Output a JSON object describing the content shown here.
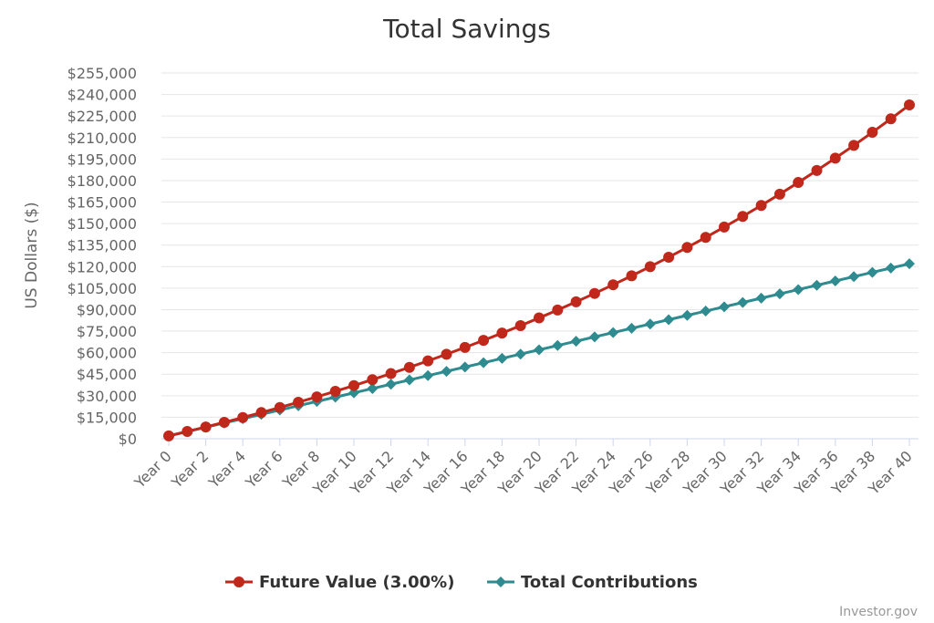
{
  "chart_data": {
    "type": "line",
    "title": "Total Savings",
    "xlabel": "",
    "ylabel": "US Dollars ($)",
    "ylim": [
      0,
      255000
    ],
    "y_tick_labels": [
      "$0",
      "$15,000",
      "$30,000",
      "$45,000",
      "$60,000",
      "$75,000",
      "$90,000",
      "$105,000",
      "$120,000",
      "$135,000",
      "$150,000",
      "$165,000",
      "$180,000",
      "$195,000",
      "$210,000",
      "$225,000",
      "$240,000",
      "$255,000"
    ],
    "y_tick_values": [
      0,
      15000,
      30000,
      45000,
      60000,
      75000,
      90000,
      105000,
      120000,
      135000,
      150000,
      165000,
      180000,
      195000,
      210000,
      225000,
      240000,
      255000
    ],
    "categories": [
      "Year 0",
      "Year 1",
      "Year 2",
      "Year 3",
      "Year 4",
      "Year 5",
      "Year 6",
      "Year 7",
      "Year 8",
      "Year 9",
      "Year 10",
      "Year 11",
      "Year 12",
      "Year 13",
      "Year 14",
      "Year 15",
      "Year 16",
      "Year 17",
      "Year 18",
      "Year 19",
      "Year 20",
      "Year 21",
      "Year 22",
      "Year 23",
      "Year 24",
      "Year 25",
      "Year 26",
      "Year 27",
      "Year 28",
      "Year 29",
      "Year 30",
      "Year 31",
      "Year 32",
      "Year 33",
      "Year 34",
      "Year 35",
      "Year 36",
      "Year 37",
      "Year 38",
      "Year 39",
      "Year 40"
    ],
    "x_tick_labels": [
      "Year 0",
      "Year 2",
      "Year 4",
      "Year 6",
      "Year 8",
      "Year 10",
      "Year 12",
      "Year 14",
      "Year 16",
      "Year 18",
      "Year 20",
      "Year 22",
      "Year 24",
      "Year 26",
      "Year 28",
      "Year 30",
      "Year 32",
      "Year 34",
      "Year 36",
      "Year 38",
      "Year 40"
    ],
    "grid": true,
    "legend": "bottom-center",
    "series": [
      {
        "name": "Future Value (3.00%)",
        "color": "#c0281c",
        "marker": "circle",
        "values": [
          2000,
          5060,
          8212,
          11458,
          14802,
          18246,
          21793,
          25447,
          29211,
          33087,
          37080,
          41192,
          45428,
          49791,
          54285,
          58913,
          63681,
          68591,
          73649,
          78858,
          84224,
          89751,
          95443,
          101307,
          107346,
          113566,
          119973,
          126572,
          133369,
          140370,
          147581,
          155008,
          162659,
          170538,
          178654,
          187014,
          195624,
          204493,
          213628,
          223036,
          232727
        ]
      },
      {
        "name": "Total Contributions",
        "color": "#2e8b8f",
        "marker": "diamond",
        "values": [
          2000,
          5000,
          8000,
          11000,
          14000,
          17000,
          20000,
          23000,
          26000,
          29000,
          32000,
          35000,
          38000,
          41000,
          44000,
          47000,
          50000,
          53000,
          56000,
          59000,
          62000,
          65000,
          68000,
          71000,
          74000,
          77000,
          80000,
          83000,
          86000,
          89000,
          92000,
          95000,
          98000,
          101000,
          104000,
          107000,
          110000,
          113000,
          116000,
          119000,
          122000
        ]
      }
    ]
  },
  "credit": "Investor.gov"
}
